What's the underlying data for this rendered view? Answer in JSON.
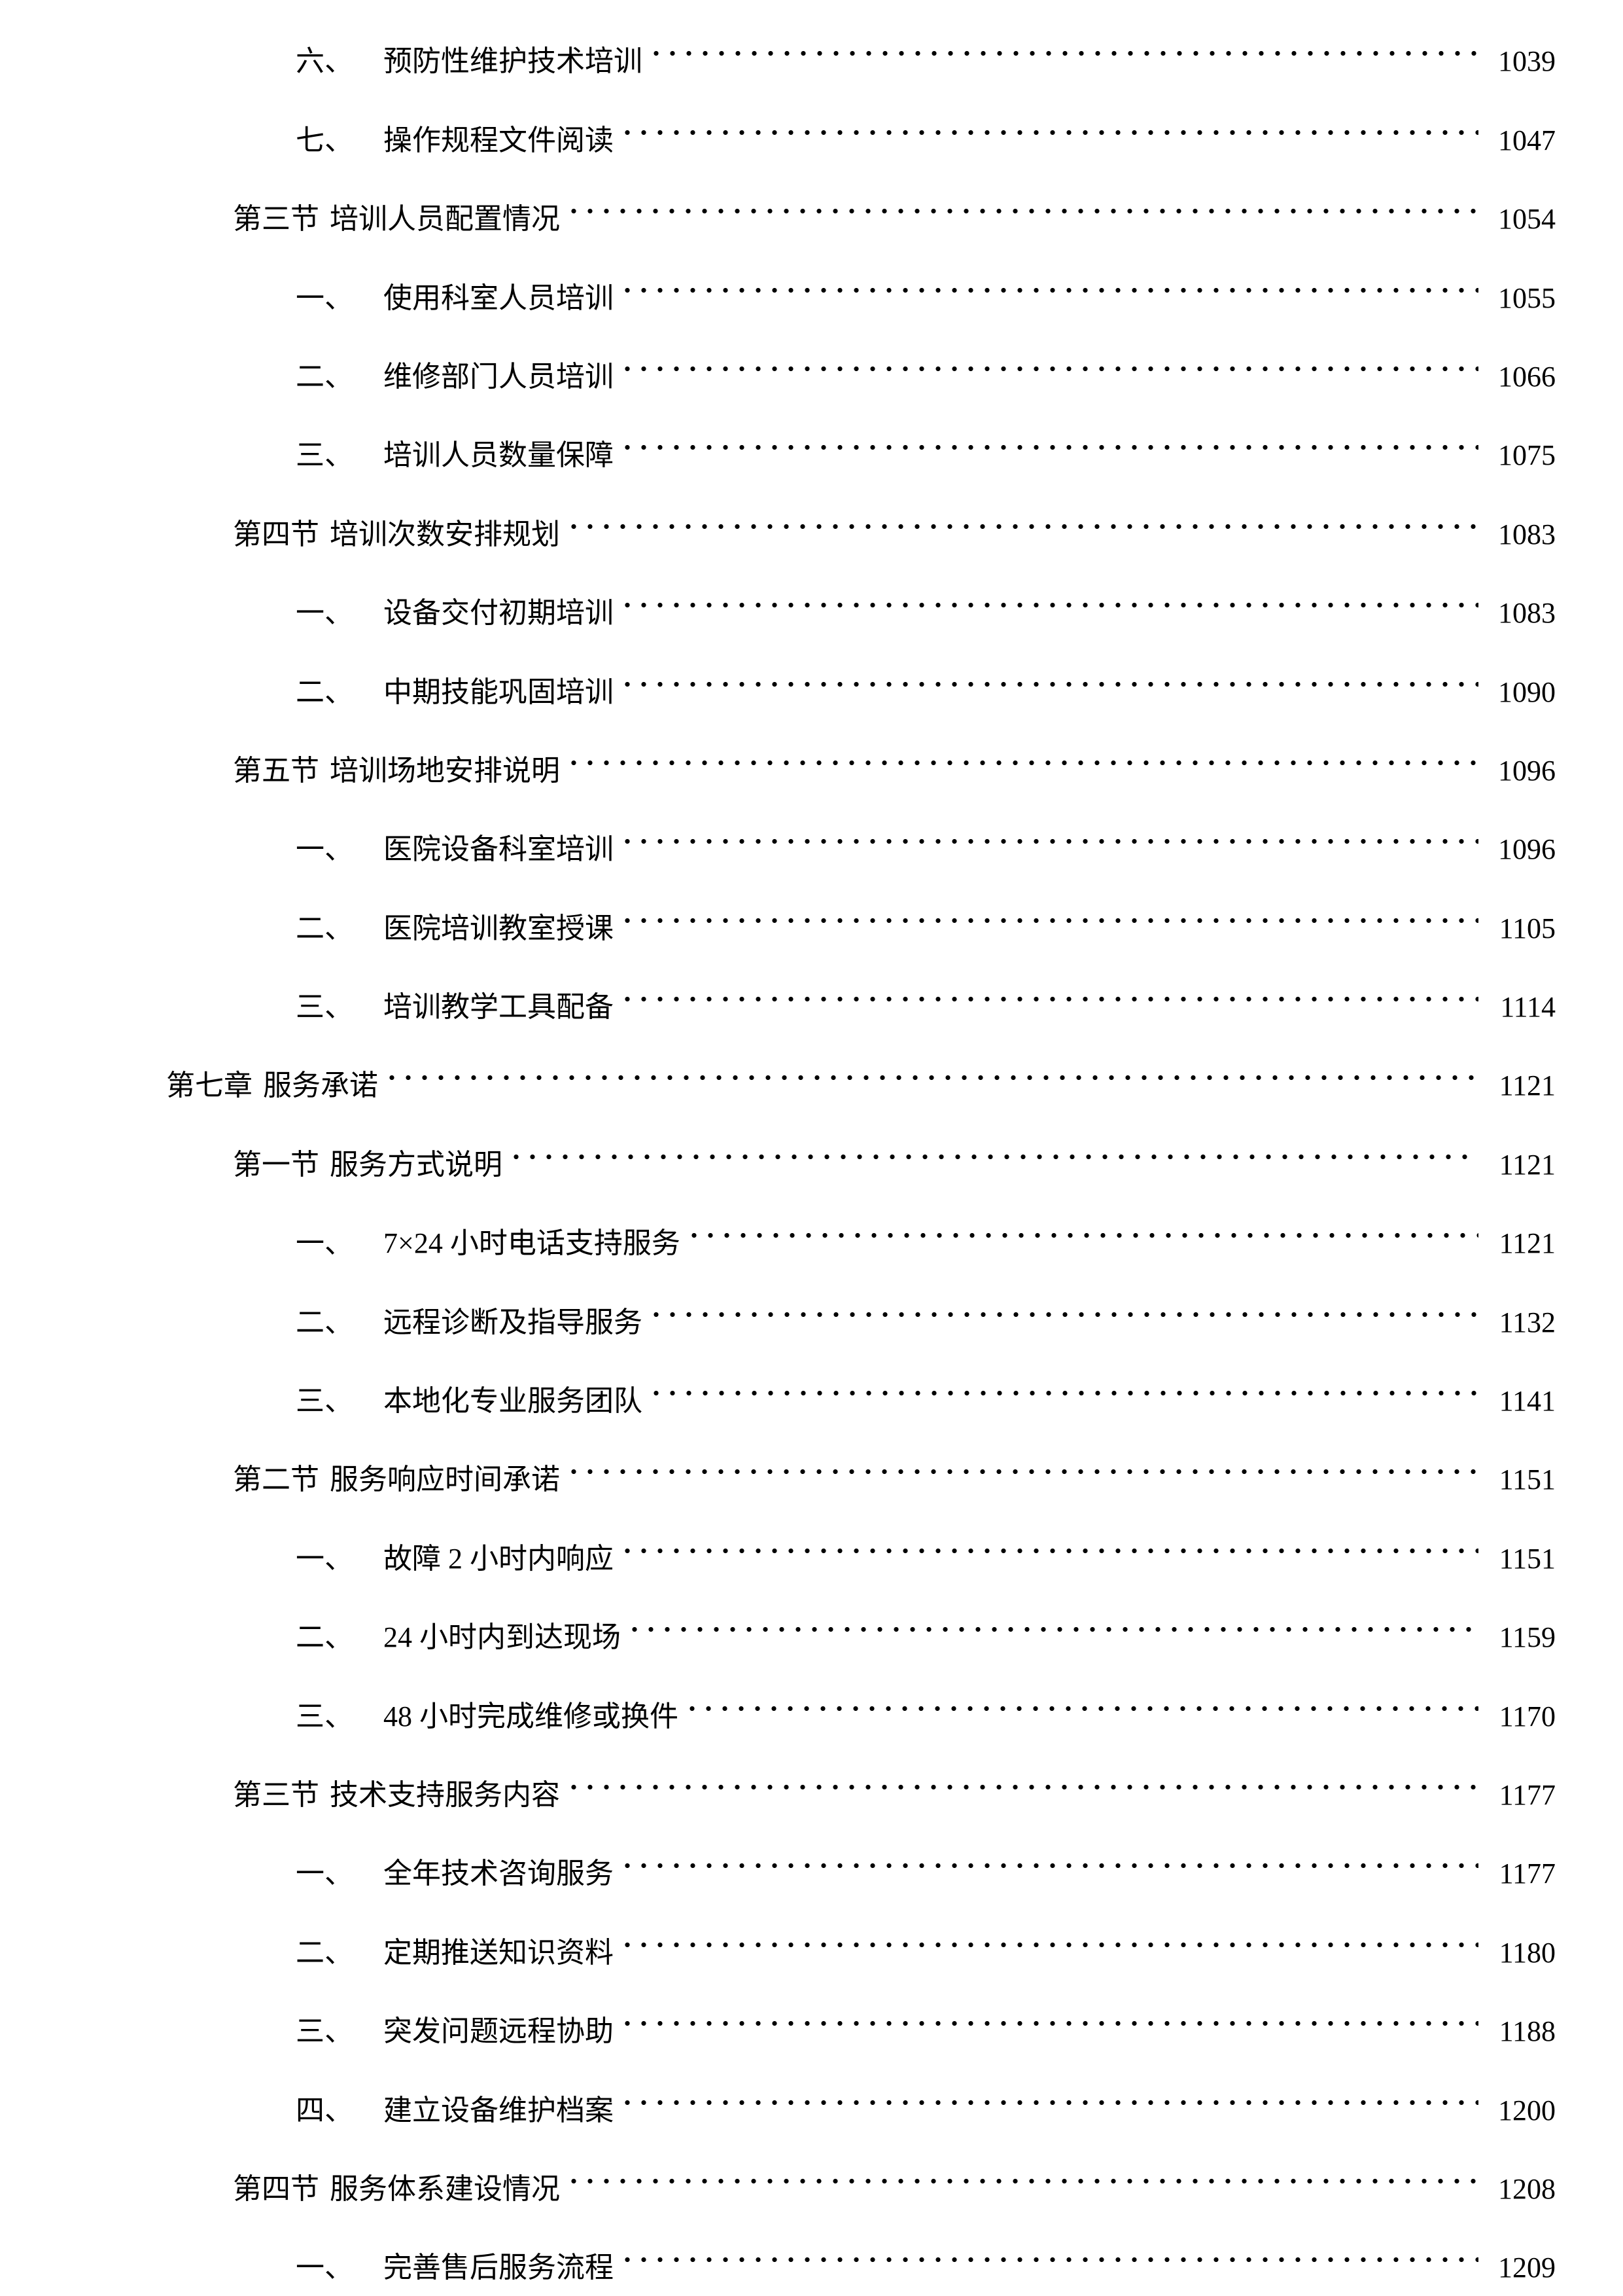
{
  "page": {
    "background_color": "#ffffff",
    "text_color": "#000000"
  },
  "toc": {
    "entries": [
      {
        "level": "item",
        "num": "六、",
        "title": "预防性维护技术培训",
        "page": "1039"
      },
      {
        "level": "item",
        "num": "七、",
        "title": "操作规程文件阅读",
        "page": "1047"
      },
      {
        "level": "section",
        "num": "第三节",
        "title": "培训人员配置情况",
        "page": "1054"
      },
      {
        "level": "item",
        "num": "一、",
        "title": "使用科室人员培训",
        "page": "1055"
      },
      {
        "level": "item",
        "num": "二、",
        "title": "维修部门人员培训",
        "page": "1066"
      },
      {
        "level": "item",
        "num": "三、",
        "title": "培训人员数量保障",
        "page": "1075"
      },
      {
        "level": "section",
        "num": "第四节",
        "title": "培训次数安排规划",
        "page": "1083"
      },
      {
        "level": "item",
        "num": "一、",
        "title": "设备交付初期培训",
        "page": "1083"
      },
      {
        "level": "item",
        "num": "二、",
        "title": "中期技能巩固培训",
        "page": "1090"
      },
      {
        "level": "section",
        "num": "第五节",
        "title": "培训场地安排说明",
        "page": "1096"
      },
      {
        "level": "item",
        "num": "一、",
        "title": "医院设备科室培训",
        "page": "1096"
      },
      {
        "level": "item",
        "num": "二、",
        "title": "医院培训教室授课",
        "page": "1105"
      },
      {
        "level": "item",
        "num": "三、",
        "title": "培训教学工具配备",
        "page": "1114"
      },
      {
        "level": "chapter",
        "num": "第七章",
        "title": "服务承诺",
        "page": "1121"
      },
      {
        "level": "section",
        "num": "第一节",
        "title": "服务方式说明",
        "page": "1121"
      },
      {
        "level": "item",
        "num": "一、",
        "title": "7×24 小时电话支持服务",
        "page": "1121"
      },
      {
        "level": "item",
        "num": "二、",
        "title": "远程诊断及指导服务",
        "page": "1132"
      },
      {
        "level": "item",
        "num": "三、",
        "title": "本地化专业服务团队",
        "page": "1141"
      },
      {
        "level": "section",
        "num": "第二节",
        "title": "服务响应时间承诺",
        "page": "1151"
      },
      {
        "level": "item",
        "num": "一、",
        "title": "故障 2 小时内响应",
        "page": "1151"
      },
      {
        "level": "item",
        "num": "二、",
        "title": "24 小时内到达现场",
        "page": "1159"
      },
      {
        "level": "item",
        "num": "三、",
        "title": "48 小时完成维修或换件",
        "page": "1170"
      },
      {
        "level": "section",
        "num": "第三节",
        "title": "技术支持服务内容",
        "page": "1177"
      },
      {
        "level": "item",
        "num": "一、",
        "title": "全年技术咨询服务",
        "page": "1177"
      },
      {
        "level": "item",
        "num": "二、",
        "title": "定期推送知识资料",
        "page": "1180"
      },
      {
        "level": "item",
        "num": "三、",
        "title": "突发问题远程协助",
        "page": "1188"
      },
      {
        "level": "item",
        "num": "四、",
        "title": "建立设备维护档案",
        "page": "1200"
      },
      {
        "level": "section",
        "num": "第四节",
        "title": "服务体系建设情况",
        "page": "1208"
      },
      {
        "level": "item",
        "num": "一、",
        "title": "完善售后服务流程",
        "page": "1209"
      }
    ]
  }
}
